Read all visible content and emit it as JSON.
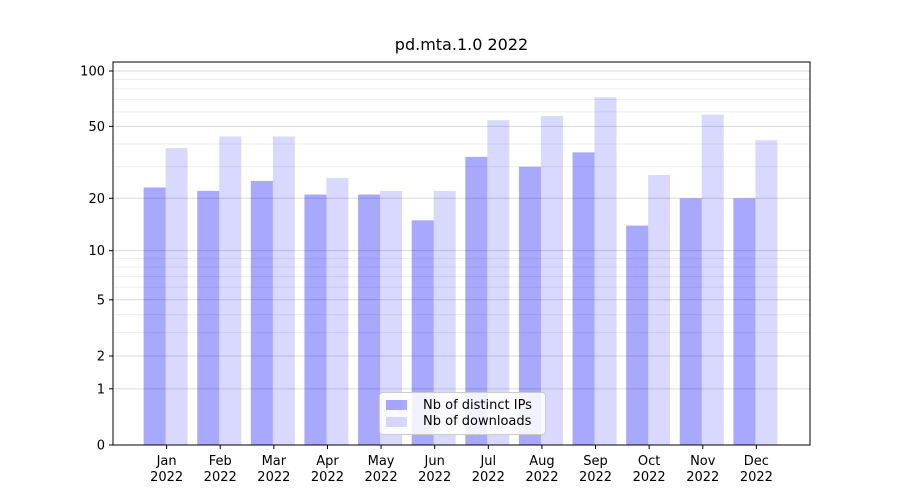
{
  "chart_data": {
    "type": "bar",
    "title": "pd.mta.1.0 2022",
    "categories": [
      "Jan",
      "Feb",
      "Mar",
      "Apr",
      "May",
      "Jun",
      "Jul",
      "Aug",
      "Sep",
      "Oct",
      "Nov",
      "Dec"
    ],
    "category_year": "2022",
    "series": [
      {
        "name": "Nb of distinct IPs",
        "key": "distinct-ips",
        "color": "rgba(0,0,255,0.34)",
        "values": [
          23,
          22,
          25,
          21,
          21,
          15,
          34,
          30,
          36,
          14,
          20,
          20
        ]
      },
      {
        "name": "Nb of downloads",
        "key": "downloads",
        "color": "rgba(0,0,255,0.15)",
        "values": [
          38,
          44,
          44,
          26,
          22,
          22,
          54,
          57,
          72,
          27,
          58,
          42
        ]
      }
    ],
    "xlabel": "",
    "ylabel": "",
    "yscale": "log(1+v)",
    "y_ticks": [
      0,
      1,
      2,
      5,
      10,
      20,
      50,
      100
    ],
    "y_minor_gridlines": [
      3,
      4,
      6,
      7,
      8,
      9,
      30,
      40,
      60,
      70,
      80,
      90
    ],
    "ylim": [
      0,
      113
    ],
    "grid": true,
    "legend_position": "lower center"
  },
  "style": {
    "axis_color": "#000000",
    "grid_major_color": "#dadada",
    "grid_minor_color": "#ededed",
    "tick_label_color": "#000000",
    "background": "#ffffff"
  }
}
